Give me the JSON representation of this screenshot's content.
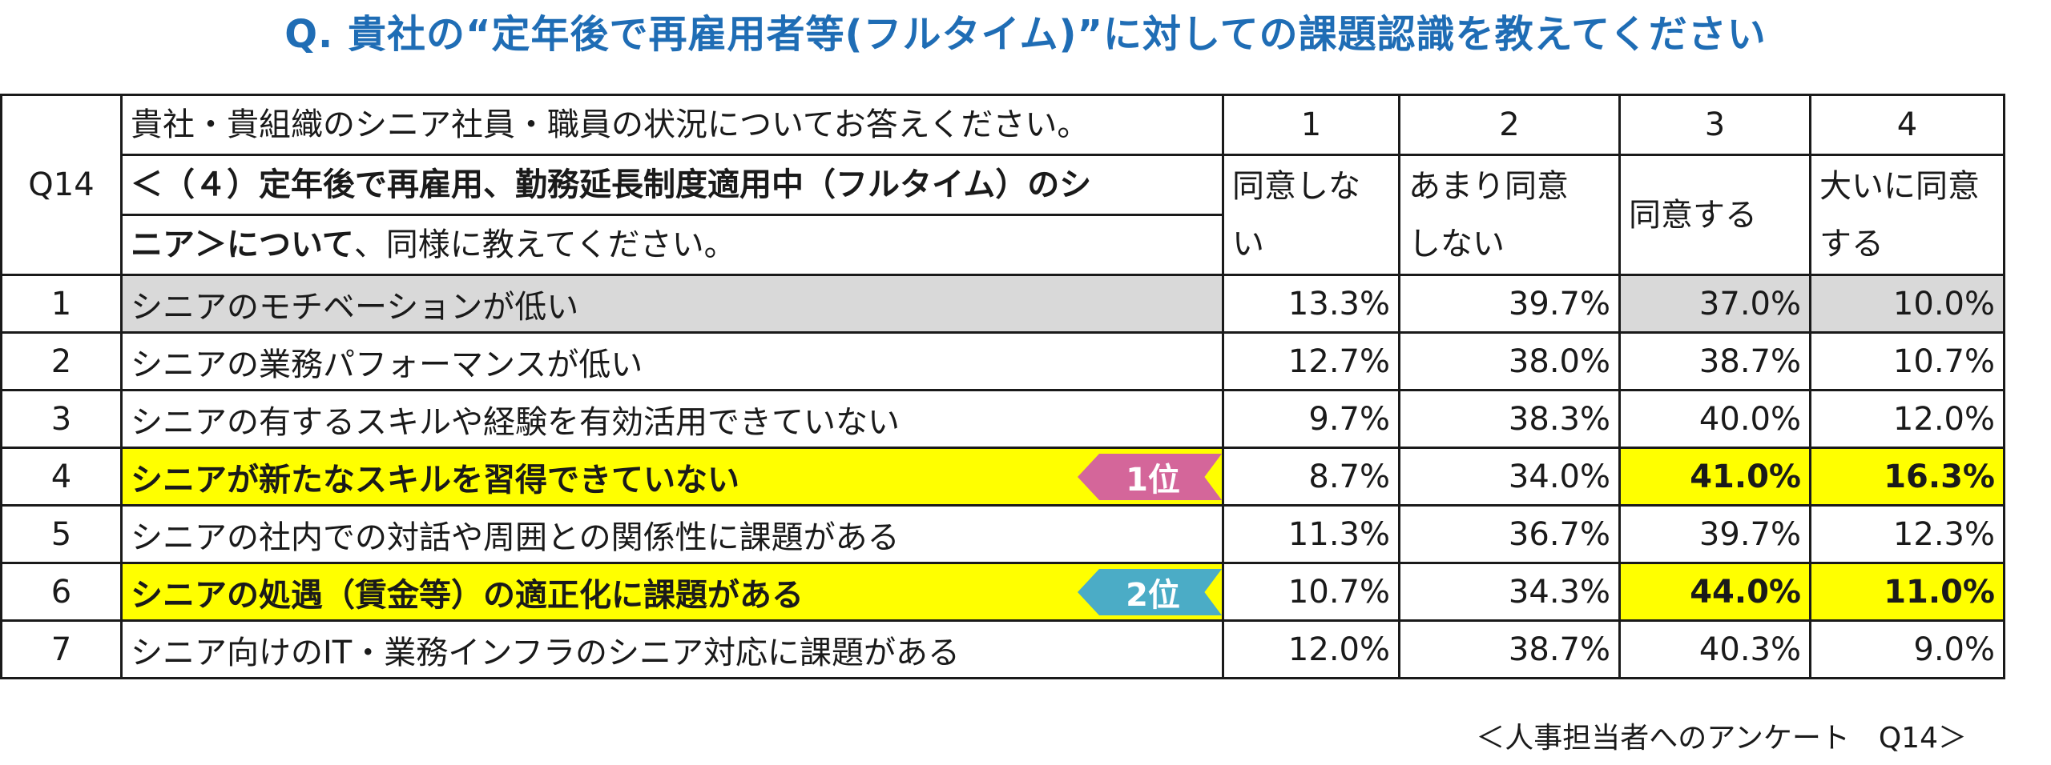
{
  "title": "Q. 貴社の“定年後で再雇用者等(フルタイム)”に対しての課題認識を教えてください",
  "table": {
    "q_id": "Q14",
    "question_line1": "貴社・貴組織のシニア社員・職員の状況についてお答えください。",
    "question_line2_bold": "＜（４）定年後で再雇用、勤務延長制度適用中（フルタイム）のシ",
    "question_line3_bold": "ニア＞について",
    "question_line3_rest": "、同様に教えてください。",
    "scale_numbers": [
      "1",
      "2",
      "3",
      "4"
    ],
    "scale_labels": [
      {
        "line1": "同意しな",
        "line2": "い"
      },
      {
        "line1": "あまり同意",
        "line2": "しない"
      },
      {
        "line1": "同意する",
        "line2": ""
      },
      {
        "line1": "大いに同意",
        "line2": "する"
      }
    ],
    "rows": [
      {
        "no": "1",
        "text": "シニアのモチベーションが低い",
        "values": [
          "13.3%",
          "39.7%",
          "37.0%",
          "10.0%"
        ]
      },
      {
        "no": "2",
        "text": "シニアの業務パフォーマンスが低い",
        "values": [
          "12.7%",
          "38.0%",
          "38.7%",
          "10.7%"
        ]
      },
      {
        "no": "3",
        "text": "シニアの有するスキルや経験を有効活用できていない",
        "values": [
          "9.7%",
          "38.3%",
          "40.0%",
          "12.0%"
        ]
      },
      {
        "no": "4",
        "text": "シニアが新たなスキルを習得できていない",
        "values": [
          "8.7%",
          "34.0%",
          "41.0%",
          "16.3%"
        ],
        "rank": "1位"
      },
      {
        "no": "5",
        "text": "シニアの社内での対話や周囲との関係性に課題がある",
        "values": [
          "11.3%",
          "36.7%",
          "39.7%",
          "12.3%"
        ]
      },
      {
        "no": "6",
        "text": "シニアの処遇（賃金等）の適正化に課題がある",
        "values": [
          "10.7%",
          "34.3%",
          "44.0%",
          "11.0%"
        ],
        "rank": "2位"
      },
      {
        "no": "7",
        "text": "シニア向けのIT・業務インフラのシニア対応に課題がある",
        "values": [
          "12.0%",
          "38.7%",
          "40.3%",
          "9.0%"
        ]
      }
    ]
  },
  "source": "＜人事担当者へのアンケート　Q14＞",
  "colors": {
    "title": "#1f6db5",
    "highlight_yellow": "#ffff00",
    "row_gray": "#d9d9d9",
    "rank1": "#d4669a",
    "rank2": "#4bacc6"
  }
}
